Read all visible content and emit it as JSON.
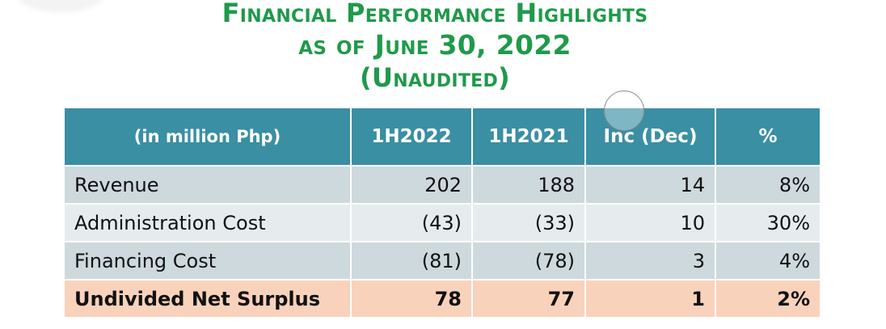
{
  "title": {
    "line1": "Financial Performance Highlights",
    "line2": "as of June 30, 2022",
    "line3": "(Unaudited)"
  },
  "table": {
    "headers": [
      "(in million Php)",
      "1H2022",
      "1H2021",
      "Inc (Dec)",
      "%"
    ],
    "rows": [
      [
        "Revenue",
        "202",
        "188",
        "14",
        "8%"
      ],
      [
        "Administration Cost",
        "(43)",
        "(33)",
        "10",
        "30%"
      ],
      [
        "Financing Cost",
        "(81)",
        "(78)",
        "3",
        "4%"
      ],
      [
        "Undivided Net Surplus",
        "78",
        "77",
        "1",
        "2%"
      ]
    ]
  },
  "colors": {
    "title": "#1f9a4a",
    "header_bg": "#3a8fa3",
    "row_dark": "#cdd9dd",
    "row_light": "#e6eced",
    "total_row": "#f9d2bb"
  }
}
